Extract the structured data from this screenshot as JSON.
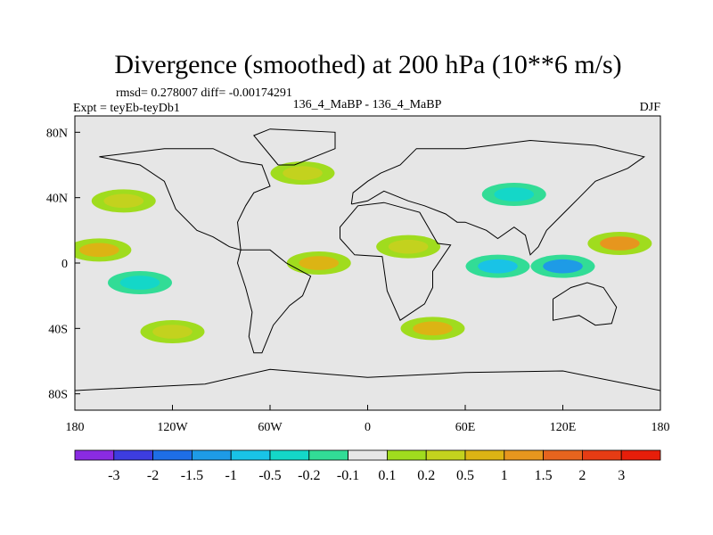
{
  "chart_data": {
    "type": "heatmap",
    "title": "Divergence (smoothed) at 200 hPa (10**6 m/s)",
    "stats_line": "rmsd= 0.278007 diff= -0.00174291",
    "experiment_label": "Expt = teyEb-teyDb1",
    "case_label": "136_4_MaBP - 136_4_MaBP",
    "season_label": "DJF",
    "xlim": [
      -180,
      180
    ],
    "ylim": [
      -90,
      90
    ],
    "x_ticks": [
      {
        "value": -180,
        "label": "180"
      },
      {
        "value": -120,
        "label": "120W"
      },
      {
        "value": -60,
        "label": "60W"
      },
      {
        "value": 0,
        "label": "0"
      },
      {
        "value": 60,
        "label": "60E"
      },
      {
        "value": 120,
        "label": "120E"
      },
      {
        "value": 180,
        "label": "180"
      }
    ],
    "y_ticks": [
      {
        "value": 80,
        "label": "80N"
      },
      {
        "value": 40,
        "label": "40N"
      },
      {
        "value": 0,
        "label": "0"
      },
      {
        "value": -40,
        "label": "40S"
      },
      {
        "value": -80,
        "label": "80S"
      }
    ],
    "colorbar_bins": [
      {
        "color": "#8a2be2"
      },
      {
        "color": "#3d3de0"
      },
      {
        "color": "#1e6ee6"
      },
      {
        "color": "#1e9be6"
      },
      {
        "color": "#19c3e6"
      },
      {
        "color": "#14d7c8"
      },
      {
        "color": "#32dc96"
      },
      {
        "color": "#e6e6e6"
      },
      {
        "color": "#a0dc1e"
      },
      {
        "color": "#c3d21e"
      },
      {
        "color": "#dcb414"
      },
      {
        "color": "#e6961e"
      },
      {
        "color": "#e6641e"
      },
      {
        "color": "#e63c14"
      },
      {
        "color": "#e61e0a"
      }
    ],
    "colorbar_labels": [
      "-3",
      "-2",
      "-1.5",
      "-1",
      "-0.5",
      "-0.2",
      "-0.1",
      "0.1",
      "0.2",
      "0.5",
      "1",
      "1.5",
      "2",
      "3"
    ],
    "field_features": [
      {
        "region": "tropical central Pacific",
        "lon": -165,
        "lat": 8,
        "value": 0.5
      },
      {
        "region": "north Pacific",
        "lon": -150,
        "lat": 38,
        "value": 0.4
      },
      {
        "region": "tropical east Pacific",
        "lon": -140,
        "lat": -12,
        "value": -0.5
      },
      {
        "region": "south Pacific",
        "lon": -120,
        "lat": -42,
        "value": 0.4
      },
      {
        "region": "tropical Atlantic",
        "lon": -30,
        "lat": 0,
        "value": 0.5
      },
      {
        "region": "north Atlantic",
        "lon": -40,
        "lat": 55,
        "value": 0.2
      },
      {
        "region": "Africa",
        "lon": 25,
        "lat": 10,
        "value": 0.4
      },
      {
        "region": "Indian Ocean",
        "lon": 80,
        "lat": -2,
        "value": -0.6
      },
      {
        "region": "maritime continent",
        "lon": 120,
        "lat": -2,
        "value": -1.2
      },
      {
        "region": "west Pacific",
        "lon": 155,
        "lat": 12,
        "value": 1.3
      },
      {
        "region": "east Asia",
        "lon": 90,
        "lat": 42,
        "value": -0.5
      },
      {
        "region": "southern ocean",
        "lon": 40,
        "lat": -40,
        "value": 0.5
      }
    ]
  }
}
